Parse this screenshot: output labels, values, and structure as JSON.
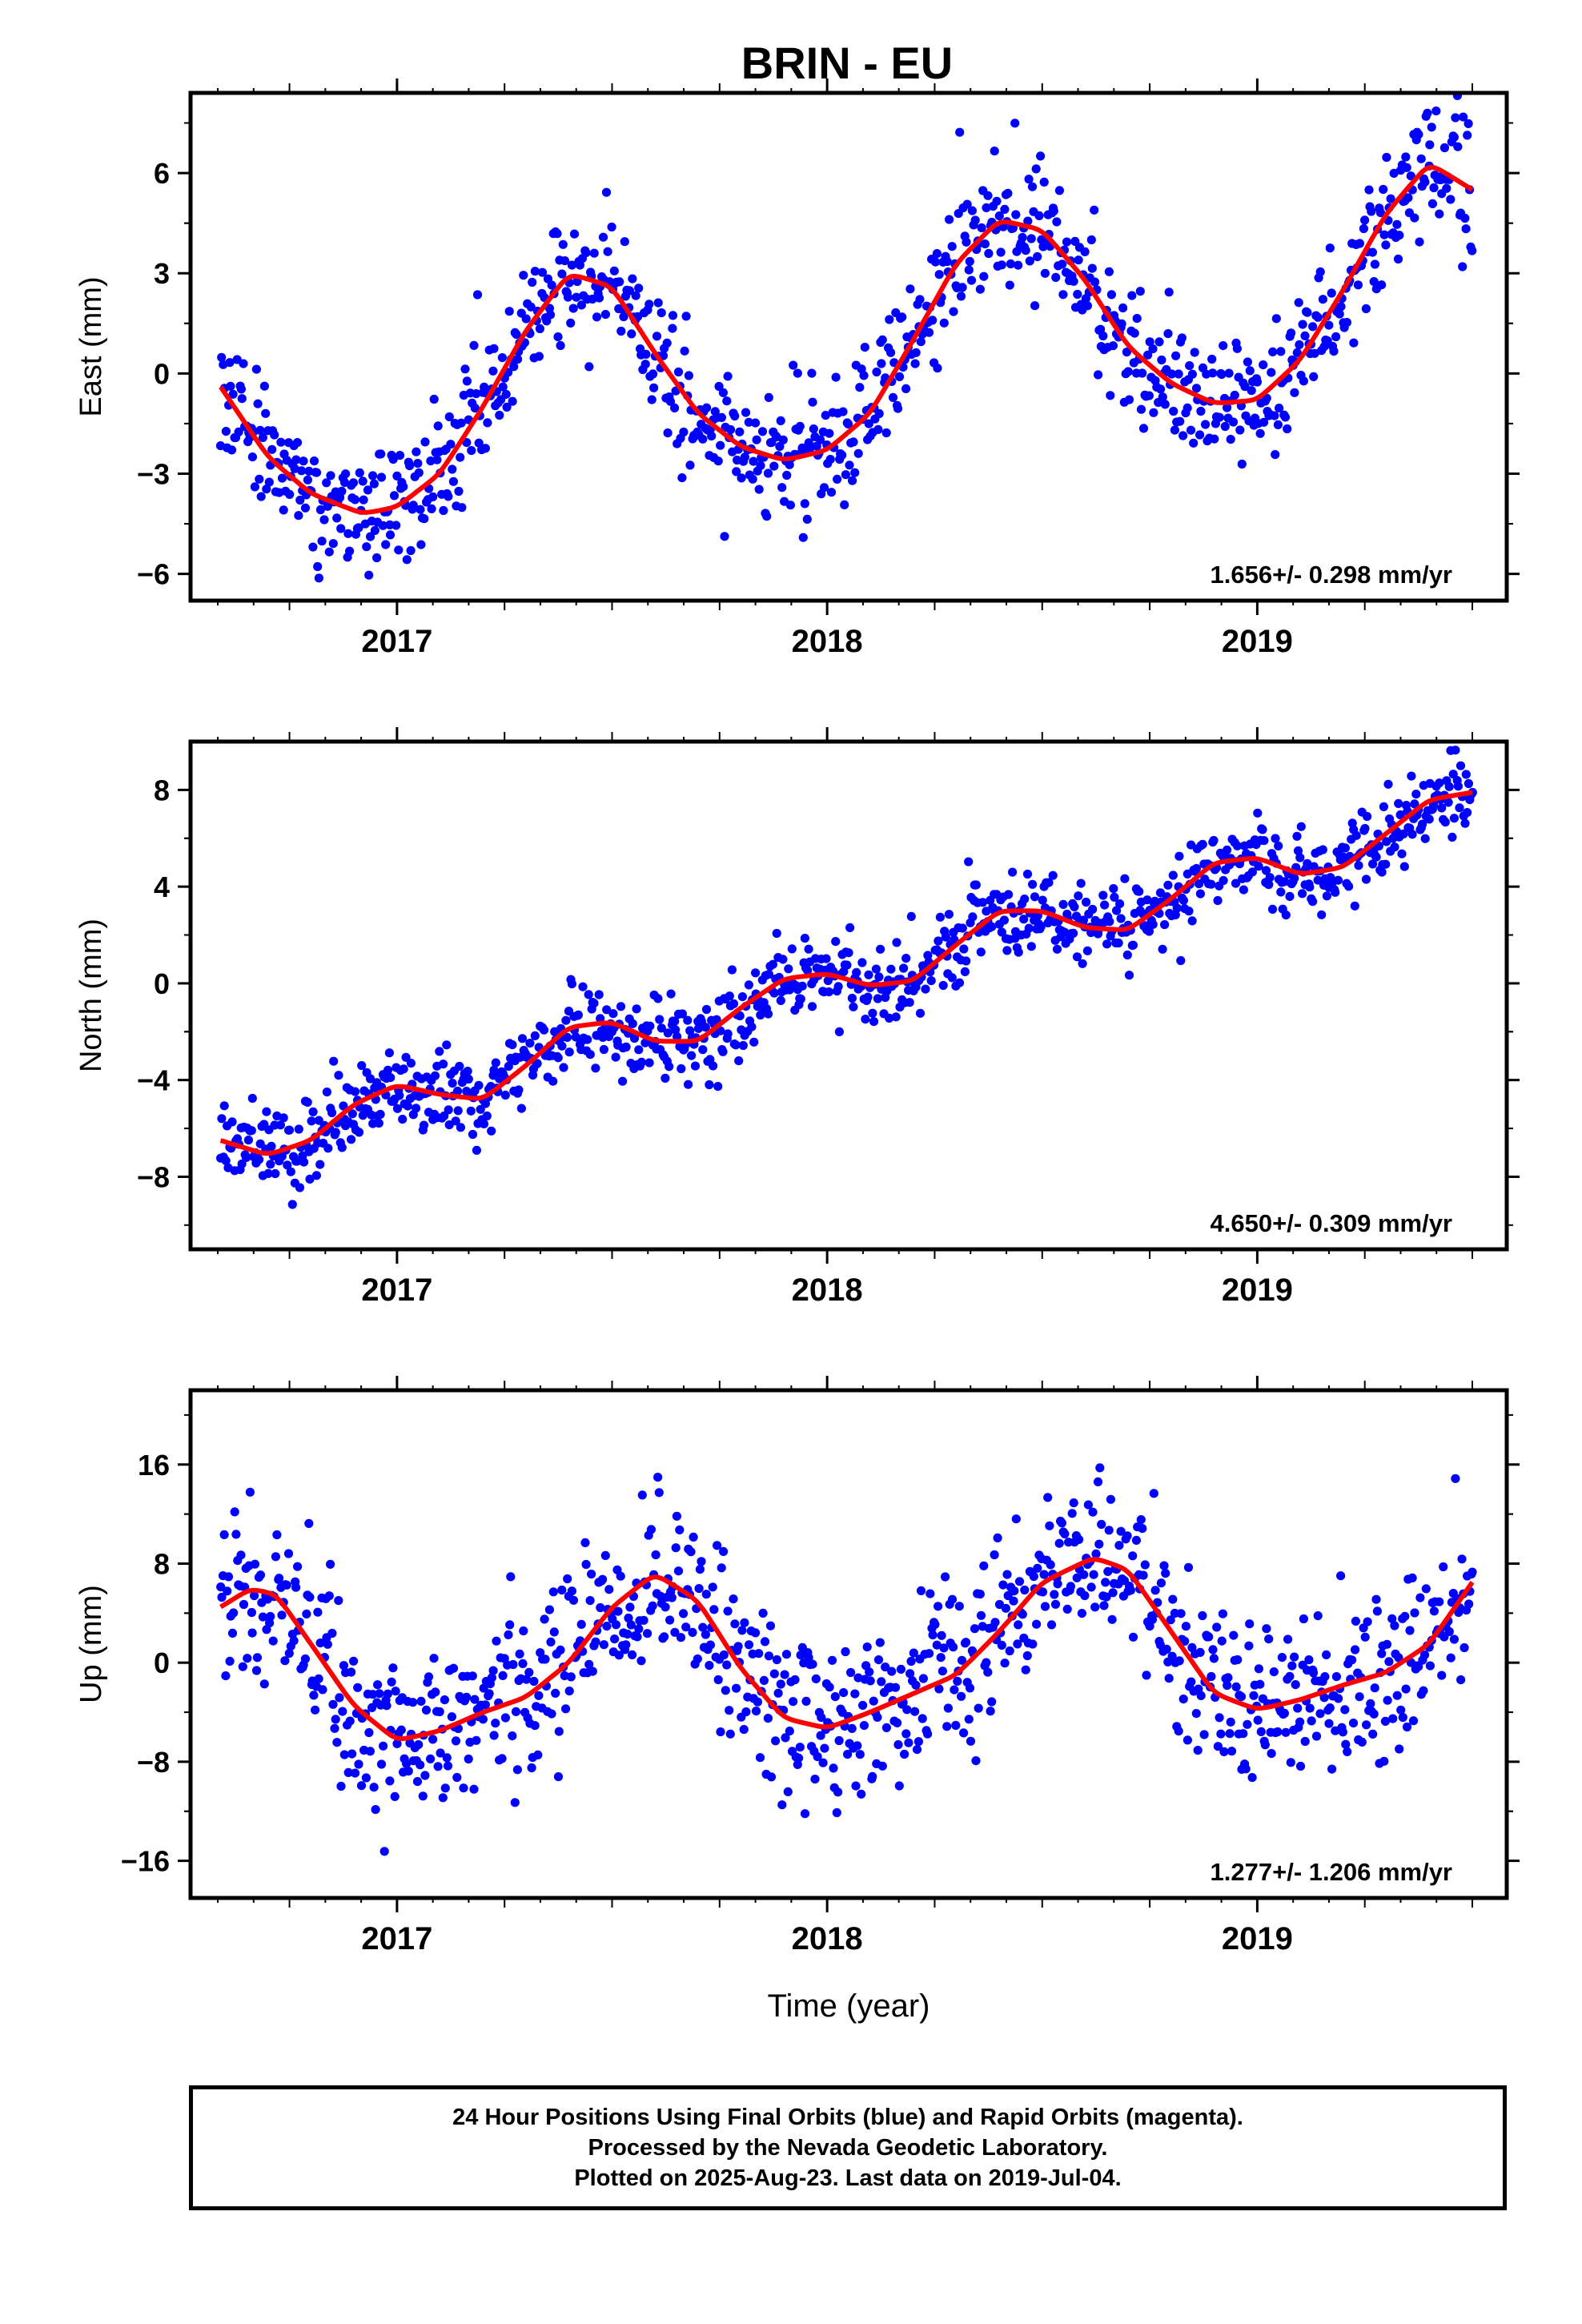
{
  "title": "BRIN - EU",
  "caption": [
    "24 Hour Positions Using Final Orbits (blue) and Rapid Orbits (magenta).",
    "Processed by the Nevada Geodetic Laboratory.",
    "Plotted on 2025-Aug-23. Last data on 2019-Jul-04."
  ],
  "colors": {
    "points": "#0000ff",
    "fit": "#ff0000",
    "frame": "#000000"
  },
  "chart_data": [
    {
      "type": "scatter",
      "ylabel": "East (mm)",
      "xlabel": "",
      "xlim": [
        2016.52,
        2019.58
      ],
      "ylim": [
        -6.8,
        8.4
      ],
      "x_ticks": [
        2017,
        2018,
        2019
      ],
      "x_tick_labels": [
        "2017",
        "2018",
        "2019"
      ],
      "y_ticks": [
        -6,
        -3,
        0,
        3,
        6
      ],
      "y_tick_labels": [
        "−6",
        "−3",
        "0",
        "3",
        "6"
      ],
      "rate_label": "1.656+/- 0.298 mm/yr",
      "fit_curve": {
        "x": [
          2016.59,
          2016.7,
          2016.8,
          2016.92,
          2017.0,
          2017.1,
          2017.2,
          2017.3,
          2017.4,
          2017.5,
          2017.6,
          2017.7,
          2017.8,
          2017.9,
          2018.0,
          2018.1,
          2018.2,
          2018.3,
          2018.4,
          2018.5,
          2018.6,
          2018.7,
          2018.8,
          2018.9,
          2019.0,
          2019.1,
          2019.2,
          2019.3,
          2019.4,
          2019.5
        ],
        "y": [
          -0.4,
          -2.5,
          -3.6,
          -4.2,
          -4.0,
          -3.0,
          -1.0,
          1.3,
          3.0,
          2.6,
          0.6,
          -1.2,
          -2.2,
          -2.6,
          -2.3,
          -1.2,
          1.0,
          3.3,
          4.6,
          4.3,
          2.8,
          0.8,
          -0.3,
          -0.9,
          -0.8,
          0.4,
          2.5,
          4.8,
          6.3,
          5.5
        ]
      },
      "noise_sd": 0.95,
      "point_count": 980
    },
    {
      "type": "scatter",
      "ylabel": "North (mm)",
      "xlabel": "",
      "xlim": [
        2016.52,
        2019.58
      ],
      "ylim": [
        -11.0,
        10.0
      ],
      "x_ticks": [
        2017,
        2018,
        2019
      ],
      "x_tick_labels": [
        "2017",
        "2018",
        "2019"
      ],
      "y_ticks": [
        -8,
        -4,
        0,
        4,
        8
      ],
      "y_tick_labels": [
        "−8",
        "−4",
        "0",
        "4",
        "8"
      ],
      "rate_label": "4.650+/- 0.309 mm/yr",
      "fit_curve": {
        "x": [
          2016.59,
          2016.7,
          2016.8,
          2016.9,
          2017.0,
          2017.1,
          2017.2,
          2017.3,
          2017.4,
          2017.5,
          2017.6,
          2017.7,
          2017.8,
          2017.9,
          2018.0,
          2018.1,
          2018.2,
          2018.3,
          2018.4,
          2018.5,
          2018.6,
          2018.7,
          2018.8,
          2018.9,
          2019.0,
          2019.1,
          2019.2,
          2019.3,
          2019.4,
          2019.5
        ],
        "y": [
          -6.5,
          -7.1,
          -6.5,
          -5.0,
          -4.2,
          -4.6,
          -4.8,
          -3.4,
          -1.8,
          -1.6,
          -2.4,
          -2.4,
          -1.0,
          0.2,
          0.4,
          -0.1,
          0.1,
          1.6,
          3.0,
          3.0,
          2.3,
          2.2,
          3.5,
          5.0,
          5.2,
          4.5,
          4.8,
          6.2,
          7.6,
          7.9
        ]
      },
      "noise_sd": 0.85,
      "point_count": 980
    },
    {
      "type": "scatter",
      "ylabel": "Up (mm)",
      "xlabel": "Time (year)",
      "xlim": [
        2016.52,
        2019.58
      ],
      "ylim": [
        -19,
        22
      ],
      "x_ticks": [
        2017,
        2018,
        2019
      ],
      "x_tick_labels": [
        "2017",
        "2018",
        "2019"
      ],
      "y_ticks": [
        -16,
        -8,
        0,
        8,
        16
      ],
      "y_tick_labels": [
        "−16",
        "−8",
        "0",
        "8",
        "16"
      ],
      "rate_label": "1.277+/- 1.206 mm/yr",
      "fit_curve": {
        "x": [
          2016.59,
          2016.66,
          2016.72,
          2016.8,
          2016.9,
          2017.0,
          2017.1,
          2017.2,
          2017.3,
          2017.4,
          2017.5,
          2017.6,
          2017.7,
          2017.8,
          2017.9,
          2018.0,
          2018.1,
          2018.2,
          2018.3,
          2018.4,
          2018.5,
          2018.62,
          2018.7,
          2018.8,
          2018.9,
          2019.0,
          2019.1,
          2019.2,
          2019.3,
          2019.4,
          2019.5
        ],
        "y": [
          4.5,
          6.0,
          5.5,
          1.5,
          -3.5,
          -6.3,
          -5.5,
          -4.0,
          -2.8,
          0.0,
          4.5,
          7.2,
          5.0,
          -0.5,
          -4.5,
          -5.3,
          -4.0,
          -2.5,
          -1.0,
          2.5,
          6.5,
          8.5,
          7.5,
          2.5,
          -2.5,
          -3.8,
          -3.0,
          -1.8,
          -0.8,
          1.5,
          6.5
        ]
      },
      "noise_sd": 3.4,
      "point_count": 980
    }
  ]
}
